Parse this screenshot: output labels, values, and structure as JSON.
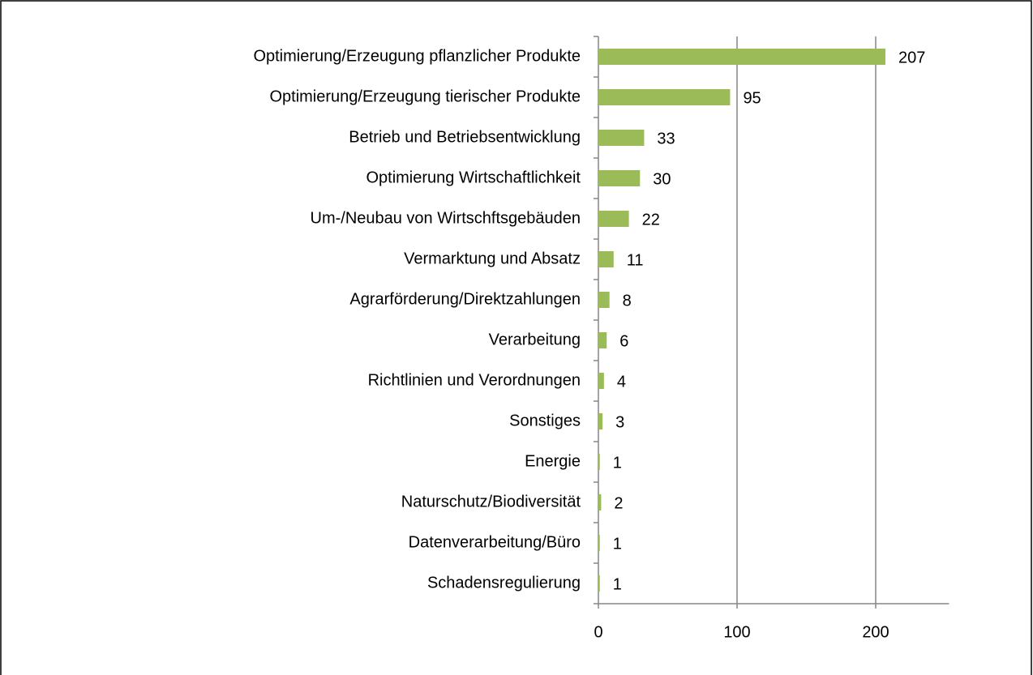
{
  "chart_data": {
    "type": "bar",
    "orientation": "horizontal",
    "categories": [
      "Optimierung/Erzeugung pflanzlicher Produkte",
      "Optimierung/Erzeugung tierischer Produkte",
      "Betrieb und Betriebsentwicklung",
      "Optimierung Wirtschaftlichkeit",
      "Um-/Neubau von Wirtschftsgebäuden",
      "Vermarktung und Absatz",
      "Agrarförderung/Direktzahlungen",
      "Verarbeitung",
      "Richtlinien und Verordnungen",
      "Sonstiges",
      "Energie",
      "Naturschutz/Biodiversität",
      "Datenverarbeitung/Büro",
      "Schadensregulierung"
    ],
    "values": [
      207,
      95,
      33,
      30,
      22,
      11,
      8,
      6,
      4,
      3,
      1,
      2,
      1,
      1
    ],
    "color": "#9bbb59",
    "xlim": [
      0,
      250
    ],
    "xticks": [
      0,
      100,
      200
    ],
    "grid": true
  }
}
